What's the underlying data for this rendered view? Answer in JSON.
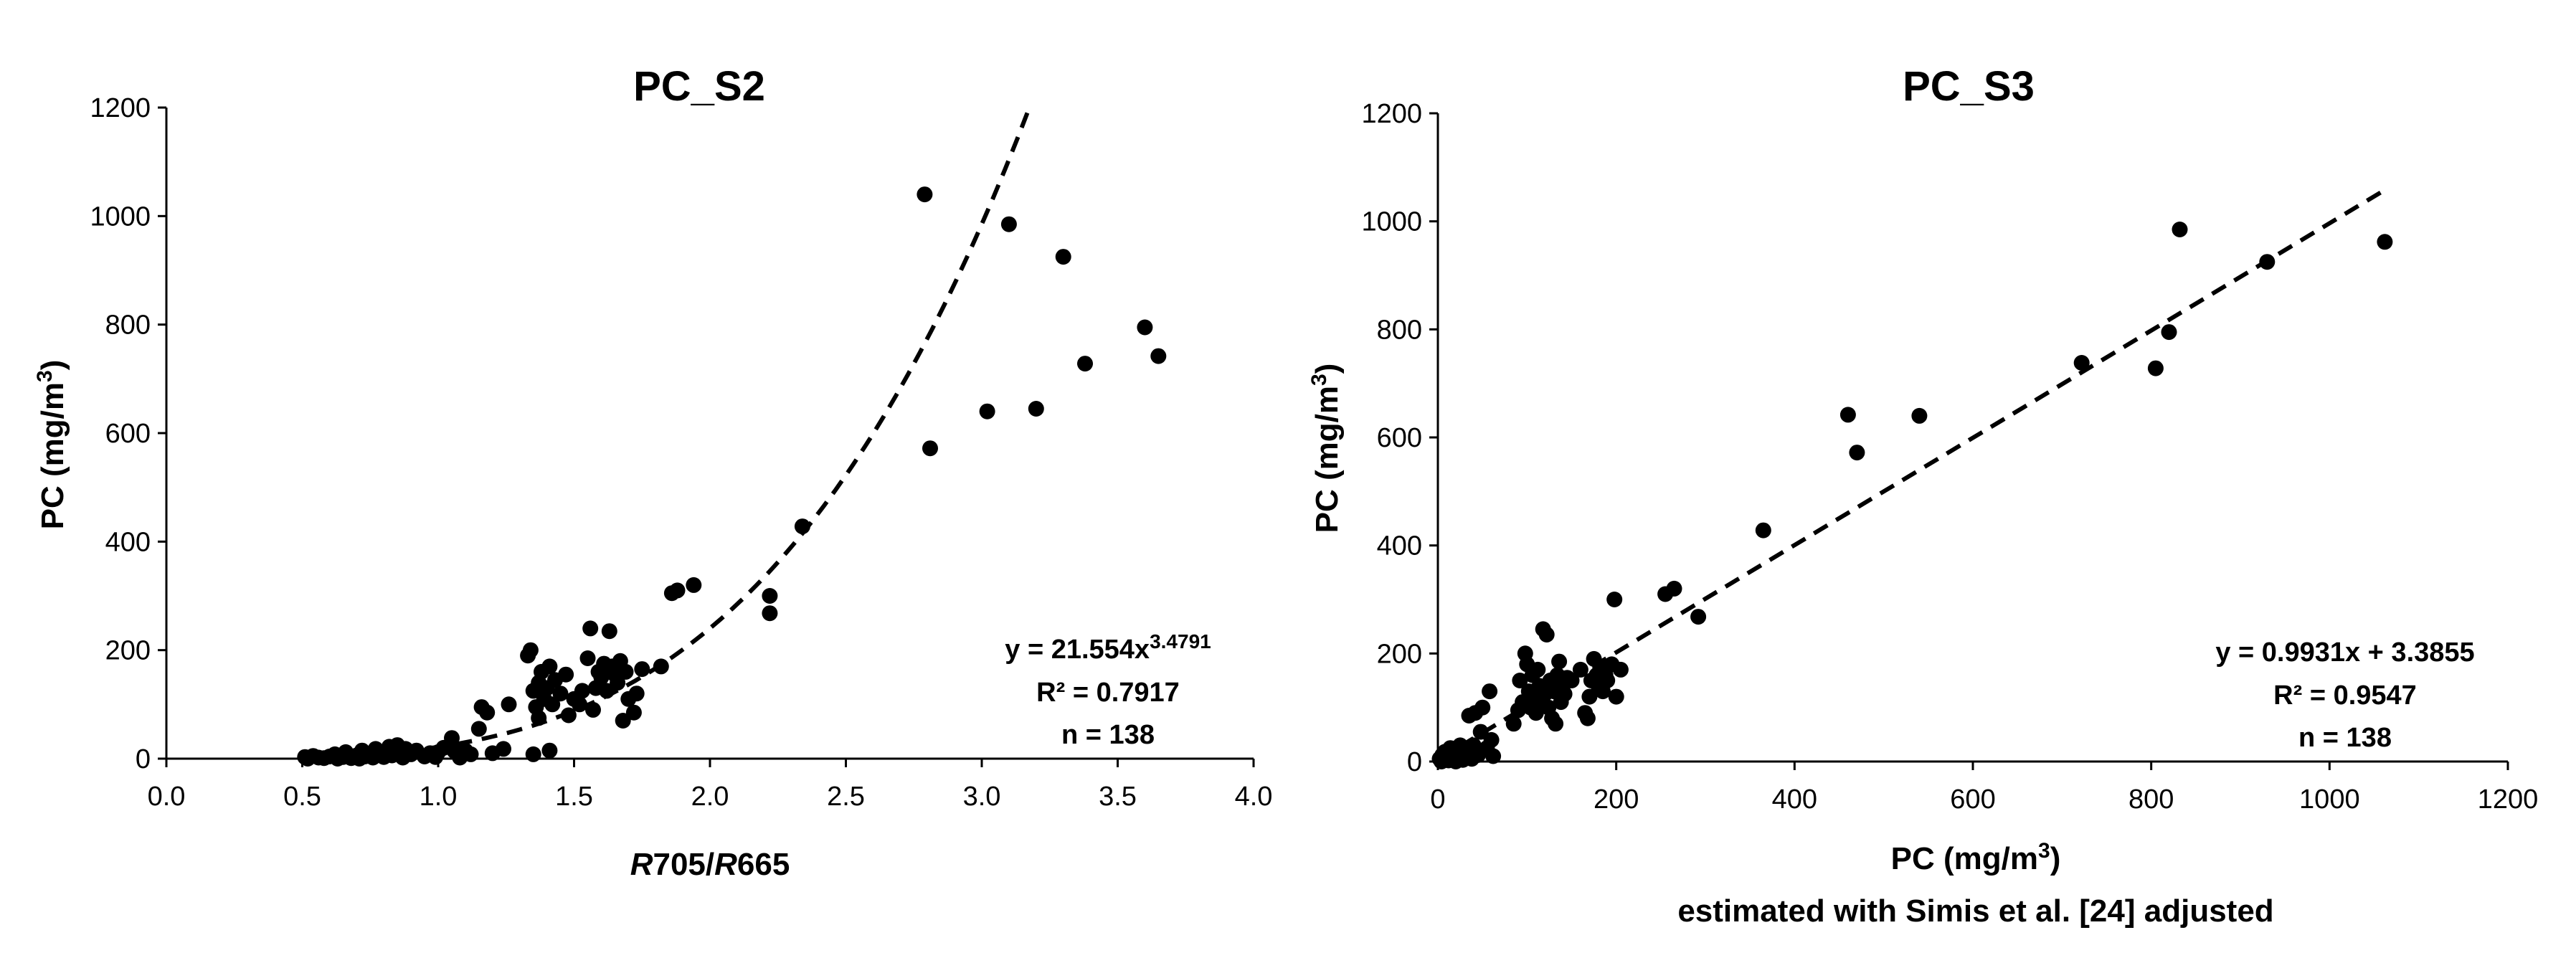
{
  "chart_data": [
    {
      "type": "scatter",
      "title": "PC_S2",
      "ylabel": "PC (mg/m3)",
      "ylabel_parts": {
        "main": "PC (mg/m",
        "sup": "3",
        "close": ")"
      },
      "xlabel_parts": {
        "r1": "R",
        "b1": "705/",
        "r2": "R",
        "b2": "665"
      },
      "xlim": [
        0,
        4.0
      ],
      "ylim": [
        0,
        1200
      ],
      "xticks": [
        "0.0",
        "0.5",
        "1.0",
        "1.5",
        "2.0",
        "2.5",
        "3.0",
        "3.5",
        "4.0"
      ],
      "yticks": [
        "0",
        "200",
        "400",
        "600",
        "800",
        "1000",
        "1200"
      ],
      "equation": {
        "main": "y = 21.554x",
        "sup": "3.4791"
      },
      "r2": "R² = 0.7917",
      "n": "n = 138",
      "fit": {
        "kind": "power",
        "a": 21.554,
        "b": 3.4791
      },
      "points": [
        [
          0.51,
          3
        ],
        [
          0.52,
          0
        ],
        [
          0.54,
          5
        ],
        [
          0.56,
          2
        ],
        [
          0.58,
          1
        ],
        [
          0.6,
          4
        ],
        [
          0.62,
          8
        ],
        [
          0.63,
          0
        ],
        [
          0.65,
          3
        ],
        [
          0.66,
          12
        ],
        [
          0.67,
          5
        ],
        [
          0.68,
          1
        ],
        [
          0.7,
          6
        ],
        [
          0.71,
          0
        ],
        [
          0.72,
          15
        ],
        [
          0.73,
          4
        ],
        [
          0.74,
          9
        ],
        [
          0.76,
          2
        ],
        [
          0.77,
          18
        ],
        [
          0.78,
          7
        ],
        [
          0.8,
          3
        ],
        [
          0.81,
          10
        ],
        [
          0.82,
          22
        ],
        [
          0.83,
          6
        ],
        [
          0.85,
          25
        ],
        [
          0.86,
          13
        ],
        [
          0.87,
          2
        ],
        [
          0.88,
          18
        ],
        [
          0.9,
          8
        ],
        [
          0.92,
          15
        ],
        [
          0.95,
          4
        ],
        [
          0.97,
          10
        ],
        [
          0.99,
          3
        ],
        [
          1.0,
          12
        ],
        [
          1.02,
          20
        ],
        [
          1.05,
          38
        ],
        [
          1.06,
          14
        ],
        [
          1.08,
          2
        ],
        [
          1.1,
          15
        ],
        [
          1.12,
          8
        ],
        [
          1.15,
          55
        ],
        [
          1.16,
          95
        ],
        [
          1.18,
          85
        ],
        [
          1.2,
          10
        ],
        [
          1.24,
          18
        ],
        [
          1.26,
          100
        ],
        [
          1.33,
          190
        ],
        [
          1.34,
          200
        ],
        [
          1.35,
          8
        ],
        [
          1.35,
          125
        ],
        [
          1.36,
          95
        ],
        [
          1.37,
          75
        ],
        [
          1.37,
          140
        ],
        [
          1.38,
          160
        ],
        [
          1.39,
          110
        ],
        [
          1.4,
          130
        ],
        [
          1.41,
          15
        ],
        [
          1.41,
          170
        ],
        [
          1.42,
          100
        ],
        [
          1.43,
          145
        ],
        [
          1.45,
          120
        ],
        [
          1.47,
          155
        ],
        [
          1.48,
          80
        ],
        [
          1.5,
          110
        ],
        [
          1.52,
          100
        ],
        [
          1.53,
          125
        ],
        [
          1.55,
          185
        ],
        [
          1.56,
          240
        ],
        [
          1.57,
          90
        ],
        [
          1.58,
          130
        ],
        [
          1.59,
          160
        ],
        [
          1.6,
          150
        ],
        [
          1.61,
          175
        ],
        [
          1.62,
          125
        ],
        [
          1.63,
          235
        ],
        [
          1.64,
          170
        ],
        [
          1.65,
          155
        ],
        [
          1.66,
          140
        ],
        [
          1.67,
          180
        ],
        [
          1.68,
          70
        ],
        [
          1.69,
          160
        ],
        [
          1.7,
          110
        ],
        [
          1.72,
          85
        ],
        [
          1.73,
          120
        ],
        [
          1.75,
          165
        ],
        [
          1.82,
          170
        ],
        [
          1.86,
          305
        ],
        [
          1.88,
          310
        ],
        [
          1.94,
          320
        ],
        [
          2.22,
          300
        ],
        [
          2.22,
          268
        ],
        [
          2.34,
          428
        ],
        [
          2.79,
          1040
        ],
        [
          2.81,
          572
        ],
        [
          3.02,
          640
        ],
        [
          3.1,
          985
        ],
        [
          3.2,
          645
        ],
        [
          3.3,
          925
        ],
        [
          3.38,
          728
        ],
        [
          3.6,
          795
        ],
        [
          3.65,
          742
        ]
      ]
    },
    {
      "type": "scatter",
      "title": "PC_S3",
      "ylabel": "PC (mg/m3)",
      "ylabel_parts": {
        "main": "PC (mg/m",
        "sup": "3",
        "close": ")"
      },
      "xlabel_parts": {
        "main": "PC (mg/m",
        "sup": "3",
        "close": ")"
      },
      "xlabel2": "estimated with Simis et al. [24] adjusted",
      "xlim": [
        0,
        1200
      ],
      "ylim": [
        0,
        1200
      ],
      "xticks": [
        "0",
        "200",
        "400",
        "600",
        "800",
        "1000",
        "1200"
      ],
      "yticks": [
        "0",
        "200",
        "400",
        "600",
        "800",
        "1000",
        "1200"
      ],
      "equation": {
        "main": "y = 0.9931x + 3.3855",
        "sup": ""
      },
      "r2": "R² = 0.9547",
      "n": "n = 138",
      "fit": {
        "kind": "linear",
        "a": 0.9931,
        "b": 3.3855
      },
      "points": [
        [
          2,
          5
        ],
        [
          4,
          0
        ],
        [
          5,
          12
        ],
        [
          7,
          3
        ],
        [
          8,
          18
        ],
        [
          10,
          8
        ],
        [
          12,
          2
        ],
        [
          14,
          25
        ],
        [
          15,
          10
        ],
        [
          17,
          5
        ],
        [
          18,
          15
        ],
        [
          20,
          0
        ],
        [
          22,
          20
        ],
        [
          24,
          8
        ],
        [
          25,
          30
        ],
        [
          27,
          12
        ],
        [
          28,
          3
        ],
        [
          30,
          22
        ],
        [
          32,
          10
        ],
        [
          34,
          18
        ],
        [
          35,
          85
        ],
        [
          38,
          5
        ],
        [
          40,
          30
        ],
        [
          42,
          90
        ],
        [
          45,
          12
        ],
        [
          48,
          55
        ],
        [
          50,
          100
        ],
        [
          55,
          25
        ],
        [
          58,
          130
        ],
        [
          60,
          40
        ],
        [
          62,
          10
        ],
        [
          85,
          70
        ],
        [
          90,
          95
        ],
        [
          92,
          150
        ],
        [
          95,
          110
        ],
        [
          98,
          200
        ],
        [
          100,
          180
        ],
        [
          102,
          130
        ],
        [
          104,
          100
        ],
        [
          106,
          160
        ],
        [
          108,
          120
        ],
        [
          110,
          90
        ],
        [
          112,
          170
        ],
        [
          114,
          140
        ],
        [
          116,
          110
        ],
        [
          118,
          245
        ],
        [
          120,
          125
        ],
        [
          122,
          235
        ],
        [
          124,
          100
        ],
        [
          126,
          150
        ],
        [
          128,
          80
        ],
        [
          130,
          130
        ],
        [
          132,
          70
        ],
        [
          134,
          160
        ],
        [
          136,
          185
        ],
        [
          138,
          110
        ],
        [
          140,
          140
        ],
        [
          142,
          125
        ],
        [
          145,
          155
        ],
        [
          150,
          150
        ],
        [
          160,
          170
        ],
        [
          165,
          90
        ],
        [
          168,
          80
        ],
        [
          170,
          120
        ],
        [
          172,
          150
        ],
        [
          175,
          190
        ],
        [
          178,
          160
        ],
        [
          180,
          140
        ],
        [
          182,
          175
        ],
        [
          185,
          130
        ],
        [
          188,
          160
        ],
        [
          190,
          150
        ],
        [
          195,
          180
        ],
        [
          198,
          300
        ],
        [
          200,
          120
        ],
        [
          205,
          170
        ],
        [
          255,
          310
        ],
        [
          265,
          320
        ],
        [
          292,
          268
        ],
        [
          365,
          428
        ],
        [
          460,
          642
        ],
        [
          470,
          572
        ],
        [
          540,
          640
        ],
        [
          722,
          738
        ],
        [
          805,
          728
        ],
        [
          820,
          795
        ],
        [
          832,
          985
        ],
        [
          930,
          925
        ],
        [
          1062,
          962
        ]
      ]
    }
  ]
}
